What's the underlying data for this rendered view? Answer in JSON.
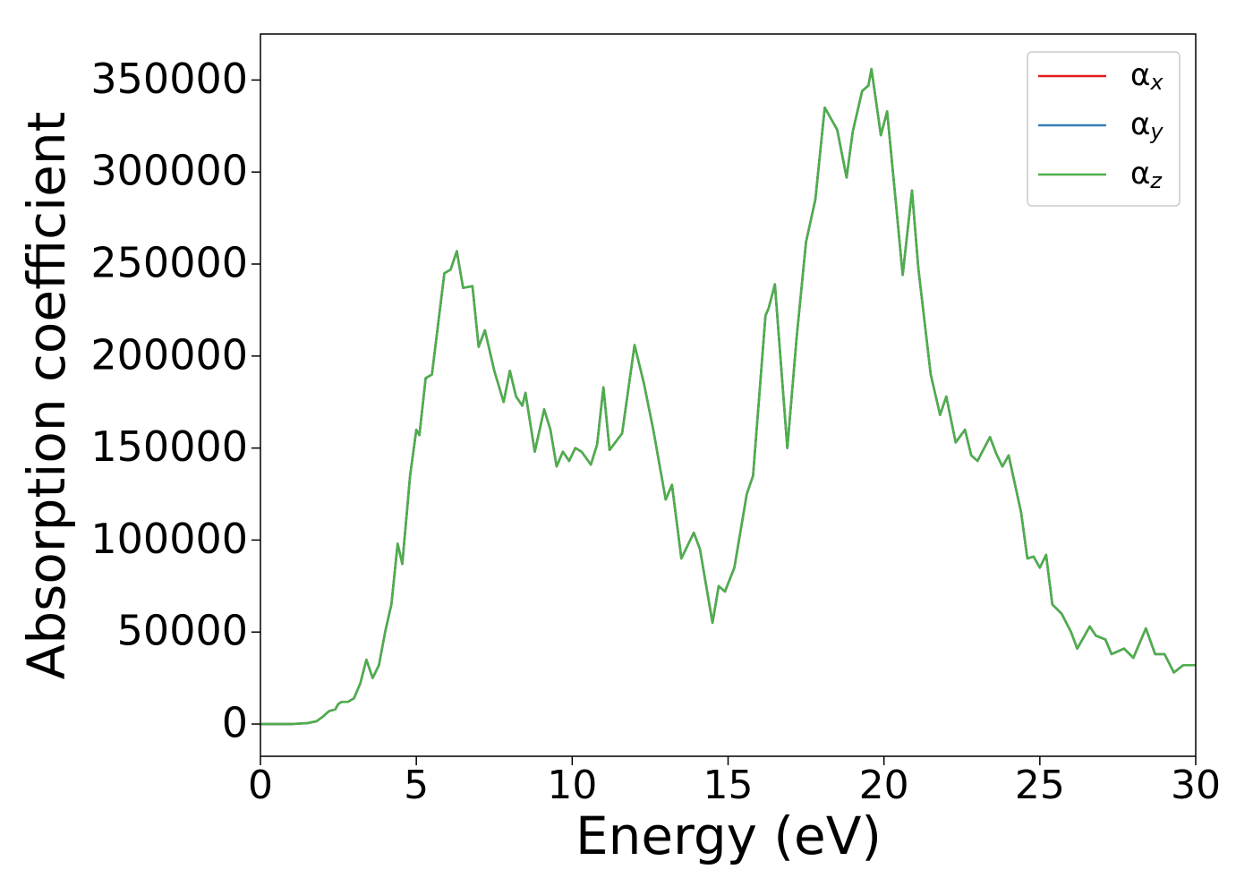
{
  "chart_data": {
    "type": "line",
    "xlabel": "Energy (eV)",
    "ylabel": "Absorption coefficient",
    "xlim": [
      0,
      30
    ],
    "xticks": [
      0,
      5,
      10,
      15,
      20,
      25,
      30
    ],
    "ylim": [
      -17500,
      375000
    ],
    "yticks": [
      0,
      50000,
      100000,
      150000,
      200000,
      250000,
      300000,
      350000
    ],
    "legend": "upper right",
    "x": [
      0,
      1,
      1.5,
      1.8,
      2,
      2.2,
      2.4,
      2.5,
      2.6,
      2.8,
      3,
      3.2,
      3.4,
      3.6,
      3.8,
      4,
      4.2,
      4.4,
      4.55,
      4.8,
      5,
      5.1,
      5.3,
      5.5,
      5.9,
      6.1,
      6.3,
      6.5,
      6.8,
      7,
      7.2,
      7.5,
      7.8,
      8,
      8.2,
      8.4,
      8.5,
      8.8,
      9.1,
      9.3,
      9.5,
      9.7,
      9.9,
      10.1,
      10.3,
      10.6,
      10.8,
      11,
      11.2,
      11.6,
      12,
      12.3,
      12.6,
      13,
      13.2,
      13.5,
      13.9,
      14.1,
      14.5,
      14.7,
      14.9,
      15.2,
      15.6,
      15.8,
      16.2,
      16.3,
      16.5,
      16.9,
      17.2,
      17.5,
      17.8,
      18.1,
      18.5,
      18.8,
      19,
      19.3,
      19.5,
      19.6,
      19.9,
      20.1,
      20.4,
      20.6,
      20.9,
      21.1,
      21.5,
      21.8,
      22,
      22.3,
      22.6,
      22.8,
      23,
      23.4,
      23.6,
      23.8,
      24,
      24.4,
      24.6,
      24.8,
      25,
      25.2,
      25.4,
      25.7,
      26,
      26.2,
      26.6,
      26.8,
      27.1,
      27.3,
      27.7,
      28,
      28.4,
      28.7,
      29,
      29.3,
      29.6,
      30
    ],
    "series": [
      {
        "name": "αx",
        "color": "#e41a1c",
        "values": [
          0,
          0,
          500,
          1500,
          4000,
          7000,
          8000,
          11000,
          12000,
          12000,
          14000,
          22000,
          35000,
          25000,
          32000,
          50000,
          65000,
          98000,
          87000,
          135000,
          160000,
          157000,
          188000,
          190000,
          245000,
          247000,
          257000,
          237000,
          238000,
          205000,
          214000,
          192000,
          175000,
          192000,
          178000,
          173000,
          180000,
          148000,
          171000,
          160000,
          140000,
          148000,
          143000,
          150000,
          148000,
          141000,
          152000,
          183000,
          149000,
          158000,
          206000,
          185000,
          160000,
          122000,
          130000,
          90000,
          104000,
          95000,
          55000,
          75000,
          72000,
          85000,
          125000,
          135000,
          222000,
          226000,
          239000,
          150000,
          210000,
          262000,
          285000,
          335000,
          323000,
          297000,
          322000,
          344000,
          347000,
          356000,
          320000,
          333000,
          280000,
          244000,
          290000,
          248000,
          190000,
          168000,
          178000,
          153000,
          160000,
          146000,
          143000,
          156000,
          147000,
          140000,
          146000,
          115000,
          90000,
          91000,
          85000,
          92000,
          65000,
          60000,
          50000,
          41000,
          53000,
          48000,
          46000,
          38000,
          41000,
          36000,
          52000,
          38000,
          38000,
          28000,
          32000,
          32000
        ]
      },
      {
        "name": "αy",
        "color": "#377eb8",
        "values": [
          0,
          0,
          500,
          1500,
          4000,
          7000,
          8000,
          11000,
          12000,
          12000,
          14000,
          22000,
          35000,
          25000,
          32000,
          50000,
          65000,
          98000,
          87000,
          135000,
          160000,
          157000,
          188000,
          190000,
          245000,
          247000,
          257000,
          237000,
          238000,
          205000,
          214000,
          192000,
          175000,
          192000,
          178000,
          173000,
          180000,
          148000,
          171000,
          160000,
          140000,
          148000,
          143000,
          150000,
          148000,
          141000,
          152000,
          183000,
          149000,
          158000,
          206000,
          185000,
          160000,
          122000,
          130000,
          90000,
          104000,
          95000,
          55000,
          75000,
          72000,
          85000,
          125000,
          135000,
          222000,
          226000,
          239000,
          150000,
          210000,
          262000,
          285000,
          335000,
          323000,
          297000,
          322000,
          344000,
          347000,
          356000,
          320000,
          333000,
          280000,
          244000,
          290000,
          248000,
          190000,
          168000,
          178000,
          153000,
          160000,
          146000,
          143000,
          156000,
          147000,
          140000,
          146000,
          115000,
          90000,
          91000,
          85000,
          92000,
          65000,
          60000,
          50000,
          41000,
          53000,
          48000,
          46000,
          38000,
          41000,
          36000,
          52000,
          38000,
          38000,
          28000,
          32000,
          32000
        ]
      },
      {
        "name": "αz",
        "color": "#4daf4a",
        "values": [
          0,
          0,
          500,
          1500,
          4000,
          7000,
          8000,
          11000,
          12000,
          12000,
          14000,
          22000,
          35000,
          25000,
          32000,
          50000,
          65000,
          98000,
          87000,
          135000,
          160000,
          157000,
          188000,
          190000,
          245000,
          247000,
          257000,
          237000,
          238000,
          205000,
          214000,
          192000,
          175000,
          192000,
          178000,
          173000,
          180000,
          148000,
          171000,
          160000,
          140000,
          148000,
          143000,
          150000,
          148000,
          141000,
          152000,
          183000,
          149000,
          158000,
          206000,
          185000,
          160000,
          122000,
          130000,
          90000,
          104000,
          95000,
          55000,
          75000,
          72000,
          85000,
          125000,
          135000,
          222000,
          226000,
          239000,
          150000,
          210000,
          262000,
          285000,
          335000,
          323000,
          297000,
          322000,
          344000,
          347000,
          356000,
          320000,
          333000,
          280000,
          244000,
          290000,
          248000,
          190000,
          168000,
          178000,
          153000,
          160000,
          146000,
          143000,
          156000,
          147000,
          140000,
          146000,
          115000,
          90000,
          91000,
          85000,
          92000,
          65000,
          60000,
          50000,
          41000,
          53000,
          48000,
          46000,
          38000,
          41000,
          36000,
          52000,
          38000,
          38000,
          28000,
          32000,
          32000
        ]
      }
    ]
  }
}
